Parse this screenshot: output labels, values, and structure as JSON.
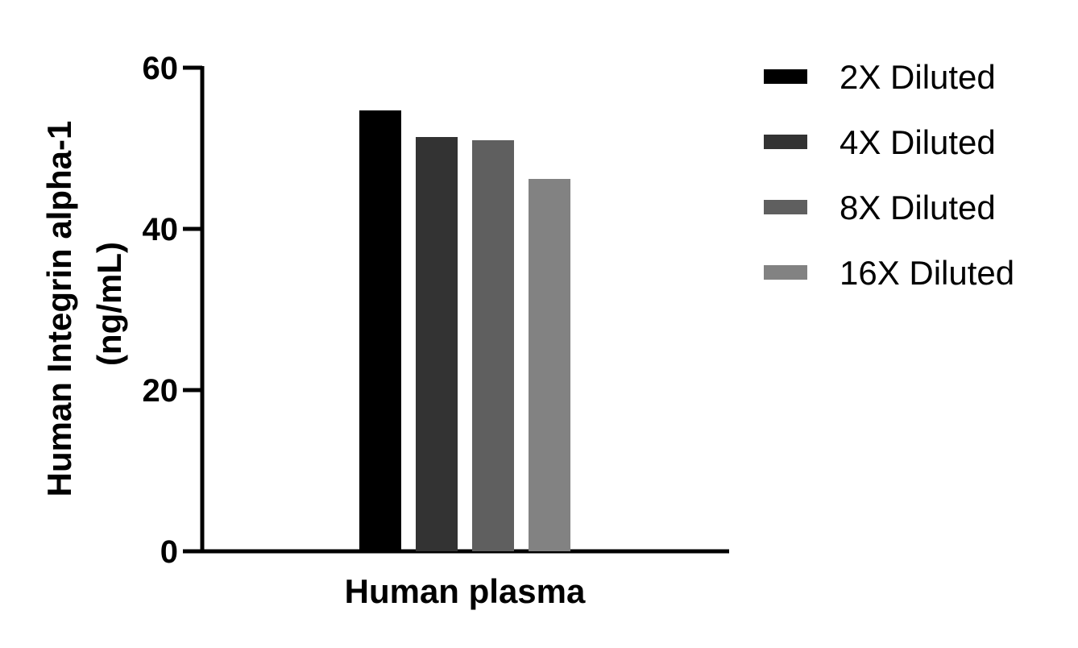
{
  "chart_data": {
    "type": "bar",
    "categories": [
      "Human plasma"
    ],
    "series": [
      {
        "name": "2X Diluted",
        "values": [
          54.7
        ],
        "color": "#000000"
      },
      {
        "name": "4X Diluted",
        "values": [
          51.4
        ],
        "color": "#333333"
      },
      {
        "name": "8X Diluted",
        "values": [
          51.0
        ],
        "color": "#5f5f5f"
      },
      {
        "name": "16X Diluted",
        "values": [
          46.2
        ],
        "color": "#828282"
      }
    ],
    "ylabel_lines": [
      "Human Integrin alpha-1",
      "(ng/mL)"
    ],
    "xlabel": "Human plasma",
    "ylim": [
      0,
      60
    ],
    "yticks": [
      "0",
      "20",
      "40",
      "60"
    ],
    "grid": false,
    "legend_position": "right"
  }
}
